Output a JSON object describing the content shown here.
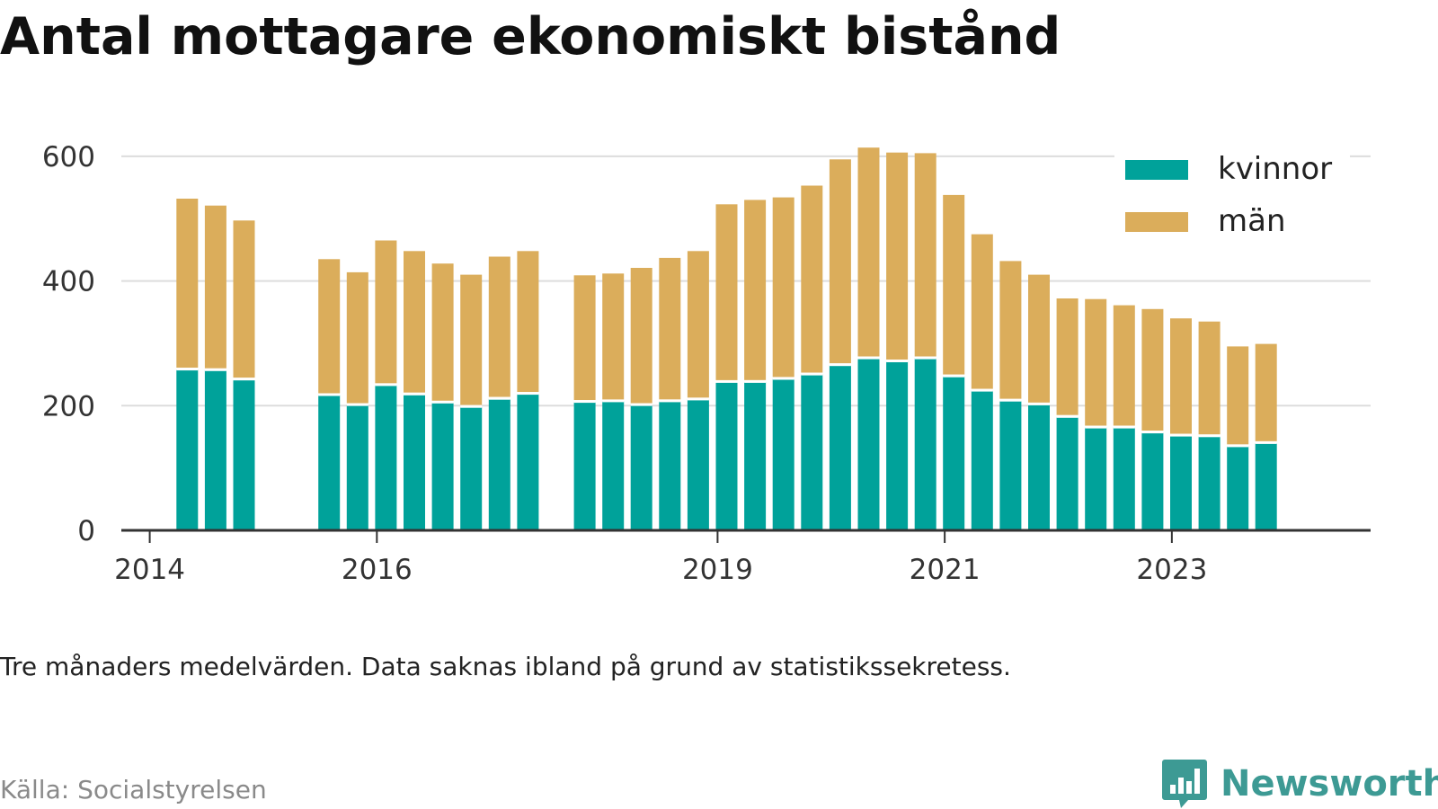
{
  "title": "Antal mottagare ekonomiskt bistånd",
  "subtitle": "Tre månaders medelvärden. Data saknas ibland på grund av statistikssekretess.",
  "source": "Källa: Socialstyrelsen",
  "brand": {
    "name": "Newsworthy",
    "color": "#3d9a94"
  },
  "chart_data": {
    "type": "bar",
    "stacked": true,
    "title": "",
    "xlabel": "",
    "ylabel": "",
    "ylim": [
      0,
      620
    ],
    "yticks": [
      0,
      200,
      400,
      600
    ],
    "grid": true,
    "legend_position": "top-right",
    "xlim": [
      2013.75,
      2024.75
    ],
    "xticks": [
      {
        "label": "2014",
        "x": 2014.0
      },
      {
        "label": "2016",
        "x": 2016.0
      },
      {
        "label": "2019",
        "x": 2019.0
      },
      {
        "label": "2021",
        "x": 2021.0
      },
      {
        "label": "2023",
        "x": 2023.0
      }
    ],
    "colors": {
      "kvinnor": "#00a29a",
      "män": "#dbad5b",
      "grid": "#dddddd",
      "axis": "#333333"
    },
    "series": [
      {
        "name": "kvinnor",
        "color": "#00a29a"
      },
      {
        "name": "män",
        "color": "#dbad5b"
      }
    ],
    "bars": [
      {
        "x": 2014.33,
        "kvinnor": 258,
        "män": 274
      },
      {
        "x": 2014.58,
        "kvinnor": 257,
        "män": 264
      },
      {
        "x": 2014.83,
        "kvinnor": 242,
        "män": 255
      },
      {
        "x": 2015.58,
        "kvinnor": 217,
        "män": 218
      },
      {
        "x": 2015.83,
        "kvinnor": 201,
        "män": 213
      },
      {
        "x": 2016.08,
        "kvinnor": 233,
        "män": 232
      },
      {
        "x": 2016.33,
        "kvinnor": 218,
        "män": 230
      },
      {
        "x": 2016.58,
        "kvinnor": 205,
        "män": 223
      },
      {
        "x": 2016.83,
        "kvinnor": 198,
        "män": 212
      },
      {
        "x": 2017.08,
        "kvinnor": 211,
        "män": 228
      },
      {
        "x": 2017.33,
        "kvinnor": 219,
        "män": 229
      },
      {
        "x": 2017.83,
        "kvinnor": 206,
        "män": 203
      },
      {
        "x": 2018.08,
        "kvinnor": 207,
        "män": 205
      },
      {
        "x": 2018.33,
        "kvinnor": 201,
        "män": 220
      },
      {
        "x": 2018.58,
        "kvinnor": 207,
        "män": 230
      },
      {
        "x": 2018.83,
        "kvinnor": 210,
        "män": 238
      },
      {
        "x": 2019.08,
        "kvinnor": 238,
        "män": 285
      },
      {
        "x": 2019.33,
        "kvinnor": 238,
        "män": 292
      },
      {
        "x": 2019.58,
        "kvinnor": 243,
        "män": 291
      },
      {
        "x": 2019.83,
        "kvinnor": 250,
        "män": 303
      },
      {
        "x": 2020.08,
        "kvinnor": 265,
        "män": 330
      },
      {
        "x": 2020.33,
        "kvinnor": 276,
        "män": 338
      },
      {
        "x": 2020.58,
        "kvinnor": 271,
        "män": 335
      },
      {
        "x": 2020.83,
        "kvinnor": 276,
        "män": 329
      },
      {
        "x": 2021.08,
        "kvinnor": 247,
        "män": 291
      },
      {
        "x": 2021.33,
        "kvinnor": 224,
        "män": 251
      },
      {
        "x": 2021.58,
        "kvinnor": 208,
        "män": 224
      },
      {
        "x": 2021.83,
        "kvinnor": 202,
        "män": 208
      },
      {
        "x": 2022.08,
        "kvinnor": 182,
        "män": 190
      },
      {
        "x": 2022.33,
        "kvinnor": 165,
        "män": 206
      },
      {
        "x": 2022.58,
        "kvinnor": 165,
        "män": 196
      },
      {
        "x": 2022.83,
        "kvinnor": 157,
        "män": 198
      },
      {
        "x": 2023.08,
        "kvinnor": 152,
        "män": 188
      },
      {
        "x": 2023.33,
        "kvinnor": 151,
        "män": 184
      },
      {
        "x": 2023.58,
        "kvinnor": 135,
        "män": 160
      },
      {
        "x": 2023.83,
        "kvinnor": 140,
        "män": 159
      }
    ]
  }
}
